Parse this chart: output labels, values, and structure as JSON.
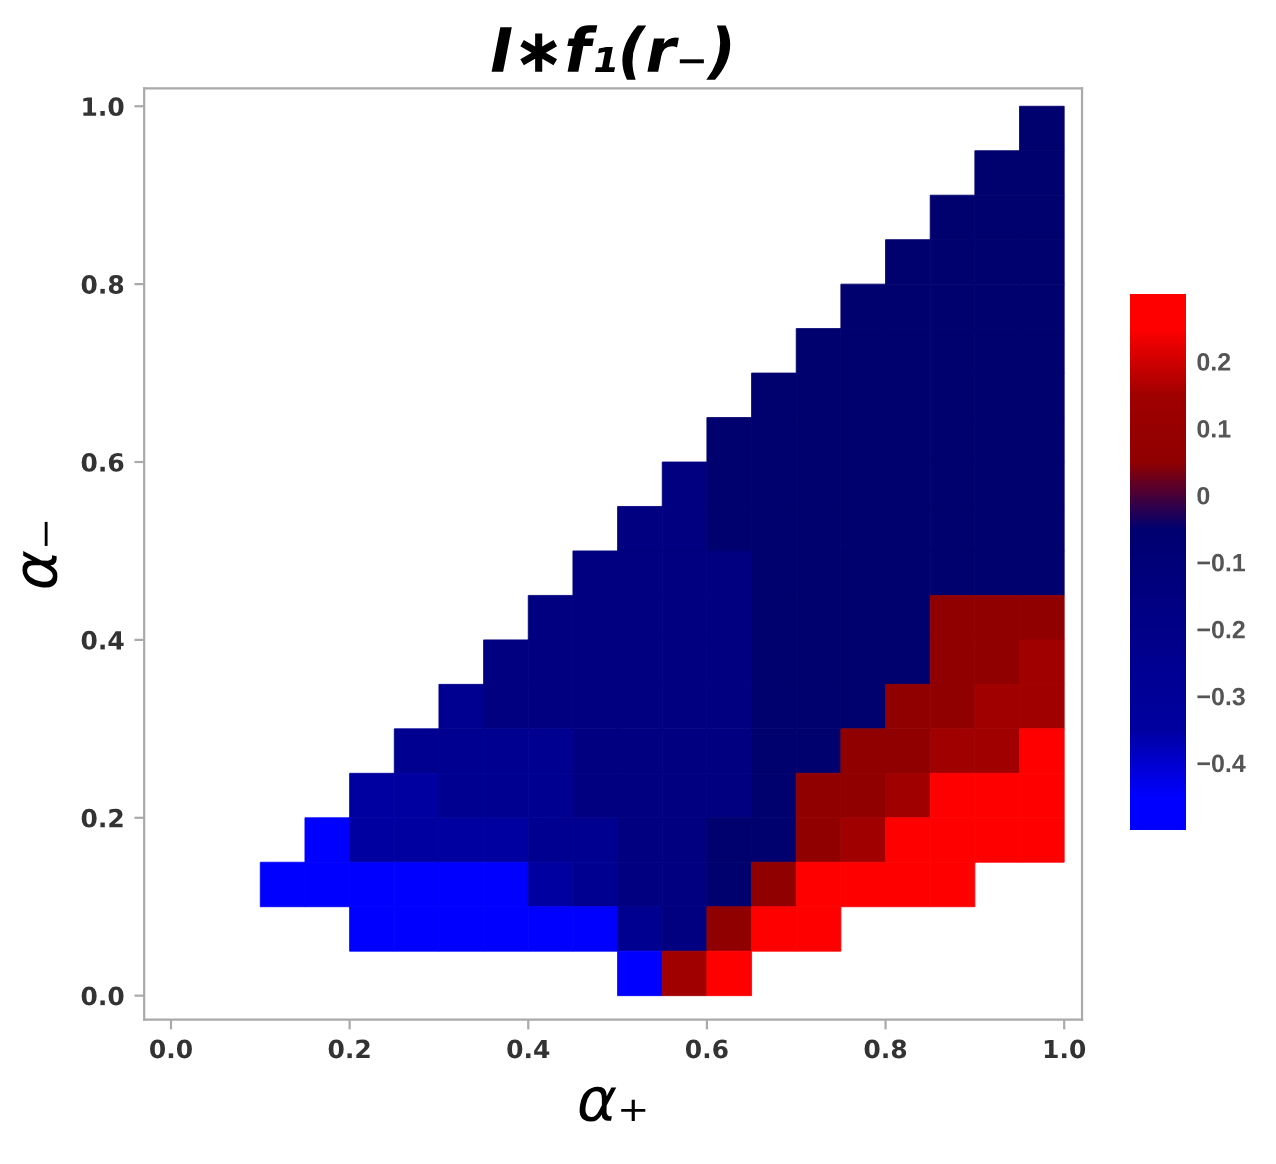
{
  "chart_data": {
    "type": "heatmap",
    "title": "I∗f₁(r₋)",
    "xlabel": "α₊",
    "ylabel": "α₋",
    "x": [
      0.025,
      0.075,
      0.125,
      0.175,
      0.225,
      0.275,
      0.325,
      0.375,
      0.425,
      0.475,
      0.525,
      0.575,
      0.625,
      0.675,
      0.725,
      0.775,
      0.825,
      0.875,
      0.925,
      0.975
    ],
    "y": [
      0.975,
      0.925,
      0.875,
      0.825,
      0.775,
      0.725,
      0.675,
      0.625,
      0.575,
      0.525,
      0.475,
      0.425,
      0.375,
      0.325,
      0.275,
      0.225,
      0.175,
      0.125,
      0.075,
      0.025
    ],
    "cells": [
      [
        null,
        null,
        null,
        null,
        null,
        null,
        null,
        null,
        null,
        null,
        null,
        null,
        null,
        null,
        null,
        null,
        null,
        null,
        null,
        -0.05
      ],
      [
        null,
        null,
        null,
        null,
        null,
        null,
        null,
        null,
        null,
        null,
        null,
        null,
        null,
        null,
        null,
        null,
        null,
        null,
        -0.05,
        -0.05
      ],
      [
        null,
        null,
        null,
        null,
        null,
        null,
        null,
        null,
        null,
        null,
        null,
        null,
        null,
        null,
        null,
        null,
        null,
        -0.05,
        -0.05,
        -0.05
      ],
      [
        null,
        null,
        null,
        null,
        null,
        null,
        null,
        null,
        null,
        null,
        null,
        null,
        null,
        null,
        null,
        null,
        -0.05,
        -0.05,
        -0.05,
        -0.05
      ],
      [
        null,
        null,
        null,
        null,
        null,
        null,
        null,
        null,
        null,
        null,
        null,
        null,
        null,
        null,
        null,
        -0.05,
        -0.05,
        -0.05,
        -0.05,
        -0.05
      ],
      [
        null,
        null,
        null,
        null,
        null,
        null,
        null,
        null,
        null,
        null,
        null,
        null,
        null,
        null,
        -0.05,
        -0.05,
        -0.05,
        -0.05,
        -0.05,
        -0.05
      ],
      [
        null,
        null,
        null,
        null,
        null,
        null,
        null,
        null,
        null,
        null,
        null,
        null,
        null,
        -0.05,
        -0.05,
        -0.05,
        -0.05,
        -0.05,
        -0.05,
        -0.05
      ],
      [
        null,
        null,
        null,
        null,
        null,
        null,
        null,
        null,
        null,
        null,
        null,
        null,
        -0.05,
        -0.05,
        -0.05,
        -0.05,
        -0.05,
        -0.05,
        -0.05,
        -0.05
      ],
      [
        null,
        null,
        null,
        null,
        null,
        null,
        null,
        null,
        null,
        null,
        null,
        -0.15,
        -0.05,
        -0.05,
        -0.05,
        -0.05,
        -0.05,
        -0.05,
        -0.05,
        -0.05
      ],
      [
        null,
        null,
        null,
        null,
        null,
        null,
        null,
        null,
        null,
        null,
        -0.15,
        -0.15,
        -0.05,
        -0.05,
        -0.05,
        -0.05,
        -0.05,
        -0.05,
        -0.05,
        -0.05
      ],
      [
        null,
        null,
        null,
        null,
        null,
        null,
        null,
        null,
        null,
        -0.15,
        -0.15,
        -0.15,
        -0.15,
        -0.05,
        -0.05,
        -0.05,
        -0.05,
        -0.05,
        -0.05,
        -0.05
      ],
      [
        null,
        null,
        null,
        null,
        null,
        null,
        null,
        null,
        -0.15,
        -0.15,
        -0.15,
        -0.15,
        -0.15,
        -0.05,
        -0.05,
        -0.05,
        -0.05,
        0.05,
        0.05,
        0.05
      ],
      [
        null,
        null,
        null,
        null,
        null,
        null,
        null,
        -0.15,
        -0.15,
        -0.15,
        -0.15,
        -0.15,
        -0.15,
        -0.05,
        -0.05,
        -0.05,
        -0.05,
        0.05,
        0.05,
        0.15
      ],
      [
        null,
        null,
        null,
        null,
        null,
        null,
        -0.25,
        -0.15,
        -0.15,
        -0.15,
        -0.15,
        -0.15,
        -0.15,
        -0.05,
        -0.05,
        -0.05,
        0.05,
        0.05,
        0.15,
        0.15
      ],
      [
        null,
        null,
        null,
        null,
        null,
        -0.25,
        -0.25,
        -0.25,
        -0.25,
        -0.15,
        -0.15,
        -0.15,
        -0.15,
        -0.05,
        -0.05,
        0.05,
        0.05,
        0.15,
        0.15,
        0.25
      ],
      [
        null,
        null,
        null,
        null,
        -0.35,
        -0.35,
        -0.25,
        -0.25,
        -0.25,
        -0.15,
        -0.15,
        -0.15,
        -0.15,
        -0.05,
        0.05,
        0.05,
        0.15,
        0.25,
        0.25,
        0.25
      ],
      [
        null,
        null,
        null,
        -0.45,
        -0.35,
        -0.35,
        -0.35,
        -0.35,
        -0.25,
        -0.25,
        -0.15,
        -0.15,
        -0.05,
        -0.05,
        0.05,
        0.15,
        0.25,
        0.25,
        0.25,
        0.25
      ],
      [
        null,
        null,
        -0.45,
        -0.45,
        -0.45,
        -0.45,
        -0.45,
        -0.45,
        -0.35,
        -0.25,
        -0.15,
        -0.15,
        -0.05,
        0.05,
        0.25,
        0.25,
        0.25,
        0.25,
        null,
        null
      ],
      [
        null,
        null,
        null,
        null,
        -0.45,
        -0.45,
        -0.45,
        -0.45,
        -0.45,
        -0.45,
        -0.25,
        -0.15,
        0.05,
        0.25,
        0.25,
        null,
        null,
        null,
        null,
        null
      ],
      [
        null,
        null,
        null,
        null,
        null,
        null,
        null,
        null,
        null,
        null,
        -0.45,
        0.15,
        0.25,
        null,
        null,
        null,
        null,
        null,
        null,
        null
      ]
    ],
    "colors": [
      "#0000ff",
      "#0000a0",
      "#000090",
      "#000080",
      "#000070",
      "#900000",
      "#a00000",
      "#ff0000"
    ],
    "clim": [
      -0.5,
      0.3
    ],
    "cticks": [
      {
        "value": -0.4,
        "label": "−0.4"
      },
      {
        "value": -0.3,
        "label": "−0.3"
      },
      {
        "value": -0.2,
        "label": "−0.2"
      },
      {
        "value": -0.1,
        "label": "−0.1"
      },
      {
        "value": 0,
        "label": "0"
      },
      {
        "value": 0.1,
        "label": "0.1"
      },
      {
        "value": 0.2,
        "label": "0.2"
      }
    ],
    "xlim": [
      -0.03,
      1.02
    ],
    "ylim": [
      -0.027,
      1.02
    ],
    "xticks": [
      {
        "value": 0,
        "label": "0.0"
      },
      {
        "value": 0.2,
        "label": "0.2"
      },
      {
        "value": 0.4,
        "label": "0.4"
      },
      {
        "value": 0.6,
        "label": "0.6"
      },
      {
        "value": 0.8,
        "label": "0.8"
      },
      {
        "value": 1,
        "label": "1.0"
      }
    ],
    "yticks": [
      {
        "value": 0,
        "label": "0.0"
      },
      {
        "value": 0.2,
        "label": "0.2"
      },
      {
        "value": 0.4,
        "label": "0.4"
      },
      {
        "value": 0.6,
        "label": "0.6"
      },
      {
        "value": 0.8,
        "label": "0.8"
      },
      {
        "value": 1,
        "label": "1.0"
      }
    ]
  }
}
